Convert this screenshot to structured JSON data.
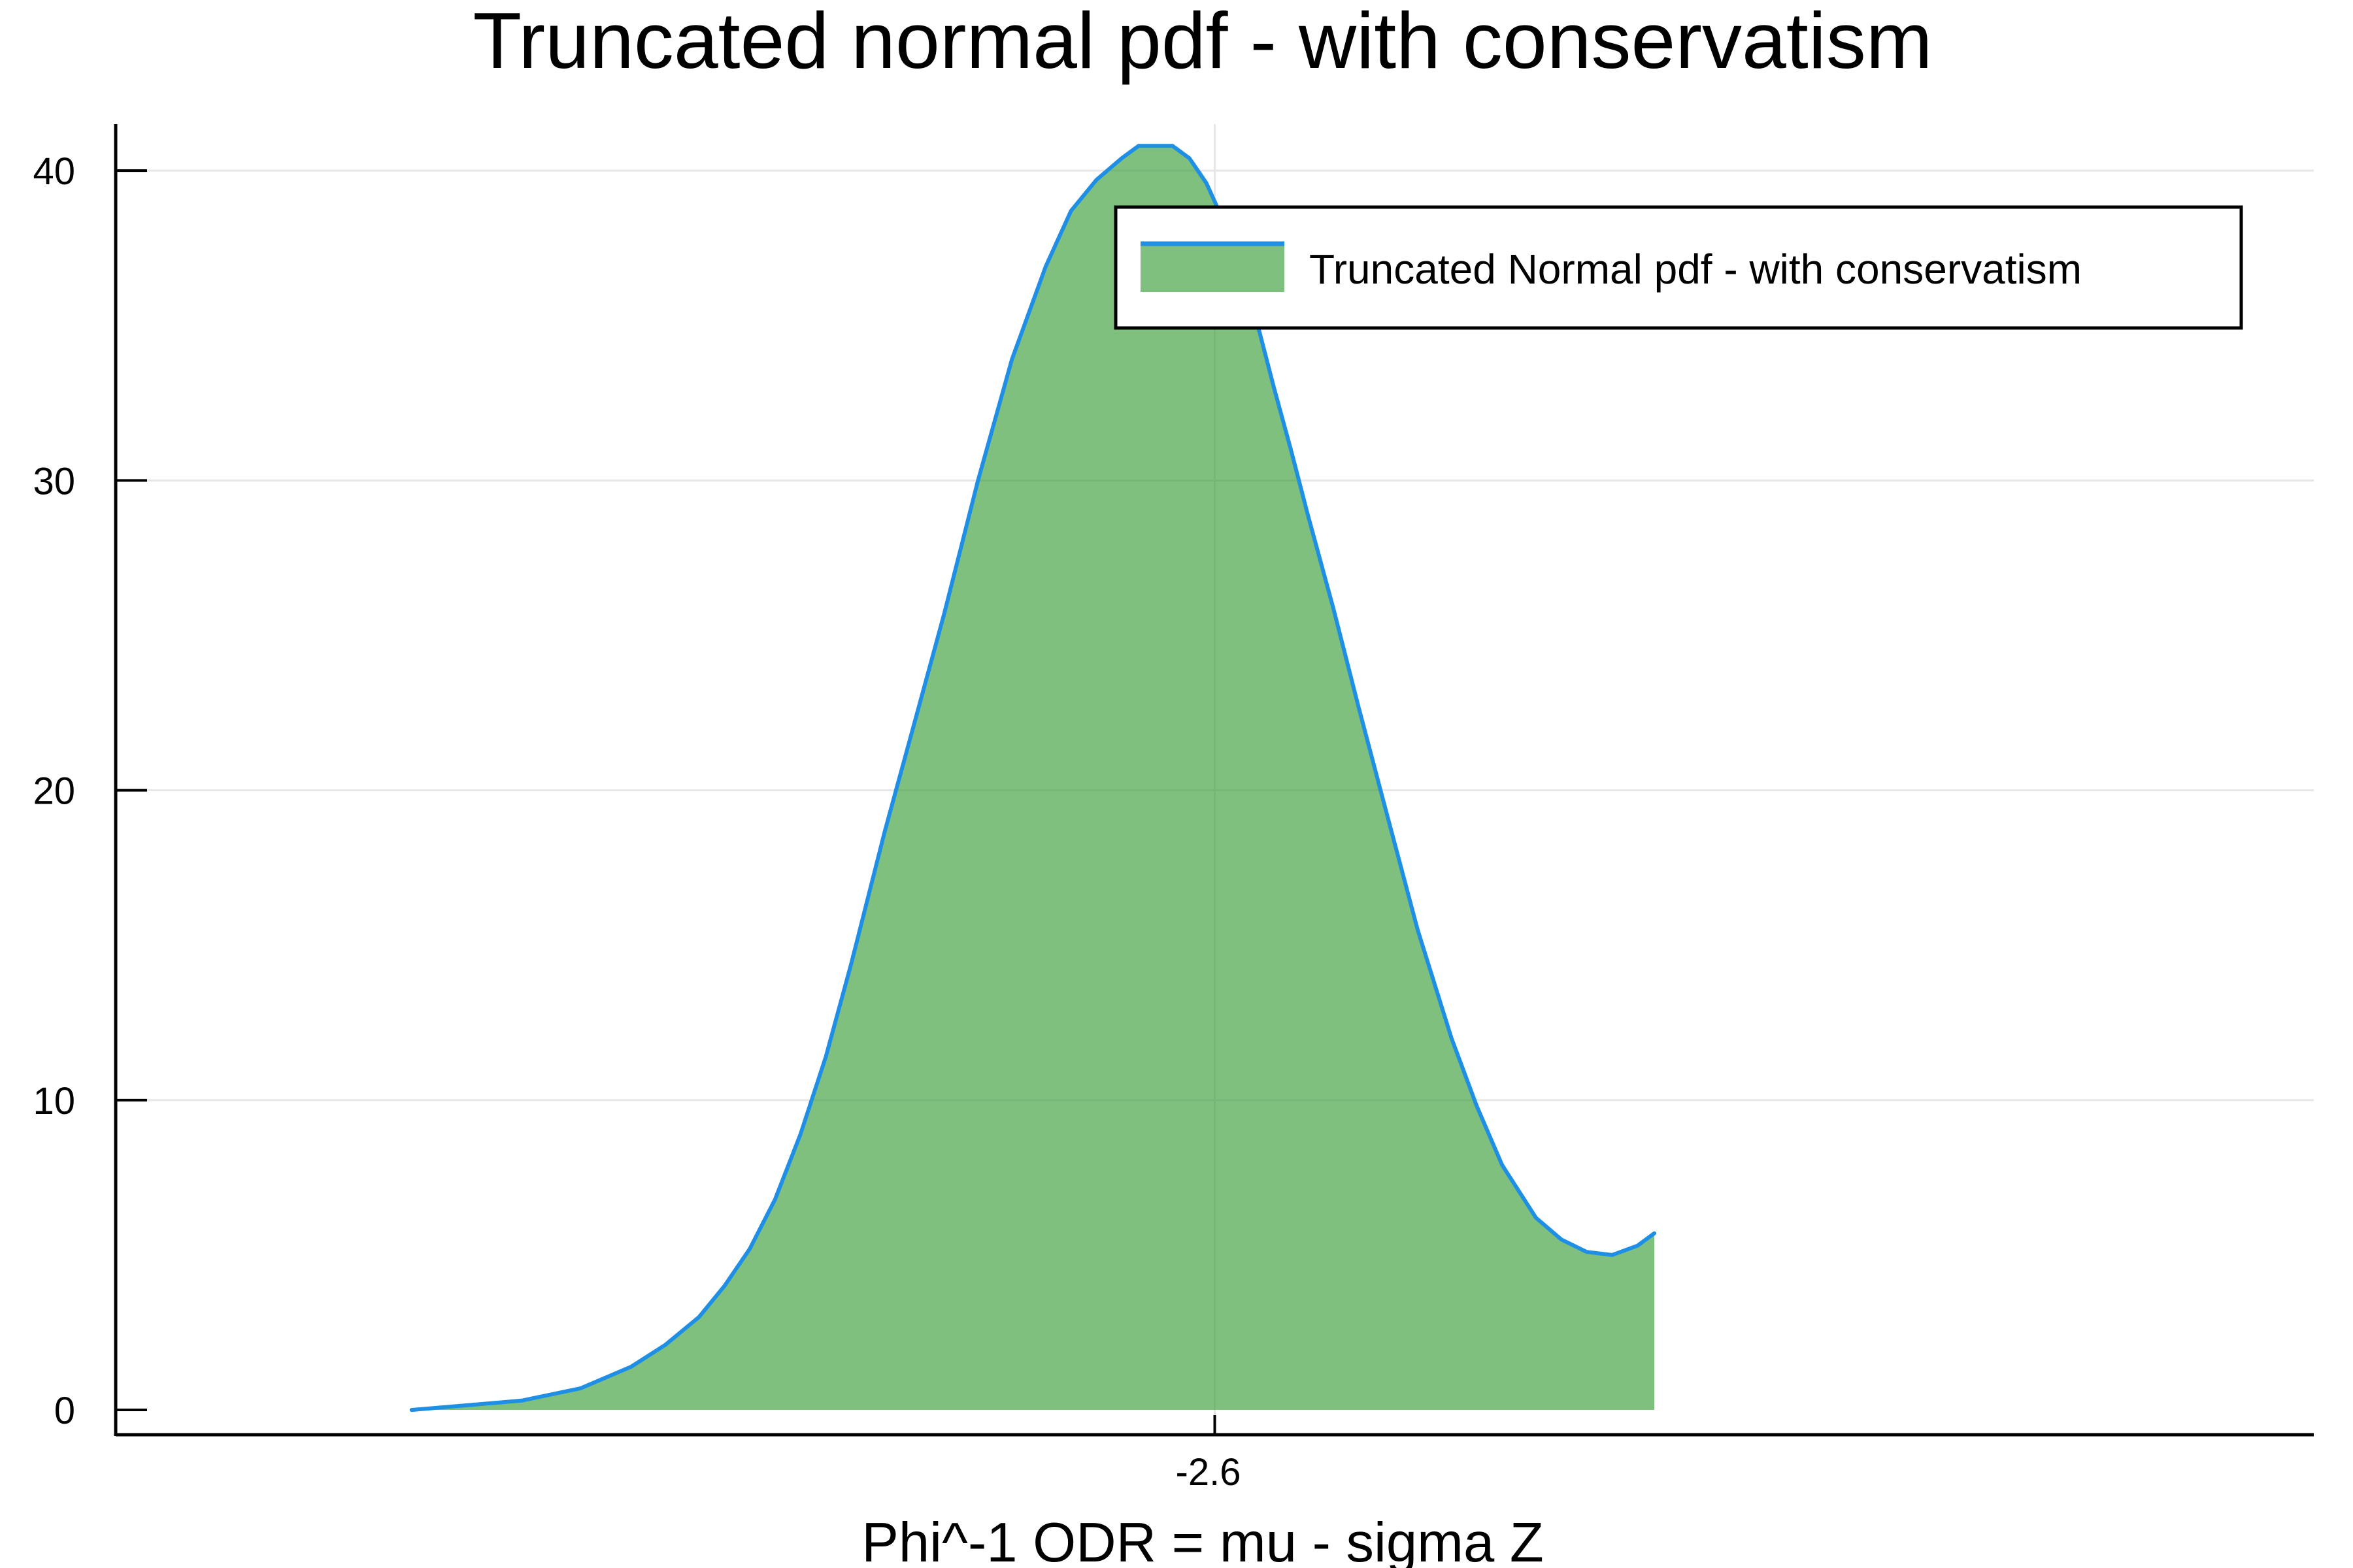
{
  "chart_data": {
    "type": "area",
    "title": "Truncated normal pdf - with conservatism",
    "xlabel": "Phi^-1 ODR = mu - sigma Z",
    "ylabel": "",
    "xlim": [
      -3.9,
      -1.3
    ],
    "ylim": [
      -0.8,
      41.5
    ],
    "x_ticks": [
      {
        "value": -2.6,
        "label": "-2.6"
      }
    ],
    "y_ticks": [
      {
        "value": 0,
        "label": "0"
      },
      {
        "value": 10,
        "label": "10"
      },
      {
        "value": 20,
        "label": "20"
      },
      {
        "value": 30,
        "label": "30"
      },
      {
        "value": 40,
        "label": "40"
      }
    ],
    "grid": true,
    "legend_position": "top-right",
    "series": [
      {
        "name": "Truncated Normal pdf - with conservatism",
        "line_color": "#1f8fe6",
        "fill_color": "#3a9e3a",
        "x": [
          -3.55,
          -3.42,
          -3.35,
          -3.29,
          -3.25,
          -3.21,
          -3.18,
          -3.15,
          -3.12,
          -3.09,
          -3.06,
          -3.03,
          -2.99,
          -2.96,
          -2.92,
          -2.88,
          -2.84,
          -2.8,
          -2.77,
          -2.74,
          -2.71,
          -2.69,
          -2.67,
          -2.65,
          -2.63,
          -2.61,
          -2.59,
          -2.57,
          -2.55,
          -2.53,
          -2.51,
          -2.49,
          -2.46,
          -2.43,
          -2.4,
          -2.36,
          -2.32,
          -2.29,
          -2.26,
          -2.22,
          -2.19,
          -2.16,
          -2.13,
          -2.1,
          -2.08
        ],
        "y": [
          0.0,
          0.3,
          0.7,
          1.4,
          2.1,
          3.0,
          4.0,
          5.2,
          6.8,
          8.9,
          11.4,
          14.4,
          18.7,
          21.7,
          25.7,
          30.0,
          33.9,
          36.9,
          38.7,
          39.7,
          40.4,
          40.8,
          40.8,
          40.8,
          40.4,
          39.6,
          38.4,
          36.9,
          35.1,
          33.0,
          31.0,
          28.9,
          25.9,
          22.7,
          19.6,
          15.5,
          12.0,
          9.8,
          7.9,
          6.2,
          5.5,
          5.1,
          5.0,
          5.3,
          5.7
        ]
      }
    ]
  }
}
